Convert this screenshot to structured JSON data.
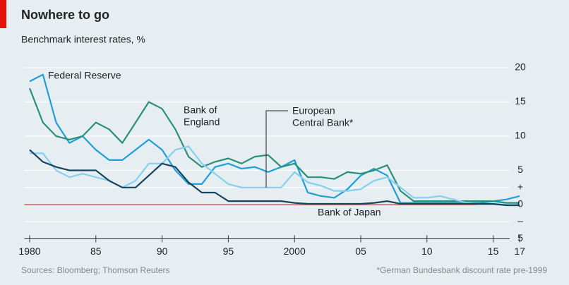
{
  "chart_data": {
    "type": "line",
    "title": "Nowhere to go",
    "subtitle": "Benchmark interest rates, %",
    "source": "Sources: Bloomberg; Thomson Reuters",
    "footnote": "*German Bundesbank discount rate pre-1999",
    "x": [
      1980,
      1981,
      1982,
      1983,
      1984,
      1985,
      1986,
      1987,
      1988,
      1989,
      1990,
      1991,
      1992,
      1993,
      1994,
      1995,
      1996,
      1997,
      1998,
      1999,
      2000,
      2001,
      2002,
      2003,
      2004,
      2005,
      2006,
      2007,
      2008,
      2009,
      2010,
      2011,
      2012,
      2013,
      2014,
      2015,
      2016,
      2017
    ],
    "series": [
      {
        "name": "Federal Reserve",
        "color": "#1e9fd8",
        "values": [
          18,
          19,
          12,
          9,
          10,
          8,
          6.5,
          6.5,
          8,
          9.5,
          8,
          5,
          3,
          3,
          5.5,
          6,
          5.25,
          5.5,
          4.75,
          5.5,
          6.5,
          1.75,
          1.25,
          1,
          2.25,
          4.25,
          5.25,
          4.25,
          0.25,
          0.25,
          0.25,
          0.25,
          0.25,
          0.25,
          0.25,
          0.5,
          0.75,
          1.25
        ]
      },
      {
        "name": [
          "Bank of",
          "England"
        ],
        "color": "#2a9077",
        "values": [
          17,
          12,
          10,
          9.5,
          10,
          12,
          11,
          9,
          12,
          15,
          14,
          11,
          7,
          5.5,
          6.25,
          6.75,
          6,
          7,
          7.25,
          5.5,
          6,
          4,
          4,
          3.75,
          4.75,
          4.5,
          5,
          5.75,
          2,
          0.5,
          0.5,
          0.5,
          0.5,
          0.5,
          0.5,
          0.5,
          0.25,
          0.25
        ]
      },
      {
        "name": [
          "European",
          "Central Bank*"
        ],
        "color": "#86cff0",
        "values": [
          7.5,
          7.5,
          5,
          4,
          4.5,
          4,
          3.5,
          2.5,
          3.5,
          6,
          6,
          8,
          8.5,
          6,
          4.5,
          3,
          2.5,
          2.5,
          2.5,
          2.5,
          4.75,
          3.25,
          2.75,
          2,
          2,
          2.25,
          3.5,
          4,
          2.5,
          1,
          1,
          1.25,
          0.75,
          0.25,
          0.05,
          0.05,
          0,
          0
        ]
      },
      {
        "name": "Bank of Japan",
        "color": "#17455e",
        "values": [
          8,
          6.25,
          5.5,
          5,
          5,
          5,
          3.5,
          2.5,
          2.5,
          4.25,
          6,
          5.5,
          3.25,
          1.75,
          1.75,
          0.5,
          0.5,
          0.5,
          0.5,
          0.5,
          0.25,
          0.1,
          0.1,
          0.1,
          0.1,
          0.1,
          0.25,
          0.5,
          0.1,
          0.1,
          0.1,
          0.1,
          0.1,
          0.1,
          0.1,
          0.1,
          -0.1,
          -0.1
        ]
      }
    ],
    "xlim": [
      1979.6,
      2017.5
    ],
    "xticks": [
      1980,
      {
        "value": 1985,
        "label": "85"
      },
      {
        "value": 1990,
        "label": "90"
      },
      {
        "value": 1995,
        "label": "95"
      },
      2000,
      {
        "value": 2005,
        "label": "05"
      },
      {
        "value": 2010,
        "label": "10"
      },
      {
        "value": 2015,
        "label": "15"
      },
      {
        "value": 2017,
        "label": "17"
      }
    ],
    "ylim": [
      -5,
      20
    ],
    "yticks": [
      {
        "value": -5,
        "label": "5"
      },
      {
        "value": -2.5,
        "label": "–"
      },
      0,
      {
        "value": 2.5,
        "label": "+"
      },
      5,
      10,
      15,
      20
    ],
    "grid": true,
    "zero_line_color": "#d9413a"
  }
}
